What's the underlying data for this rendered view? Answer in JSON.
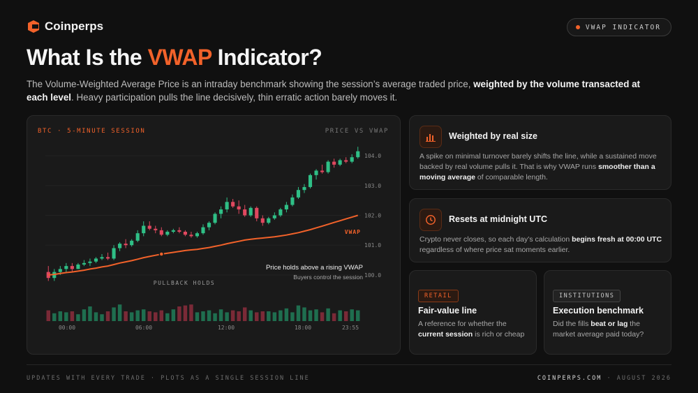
{
  "brand": {
    "name": "Coinperps"
  },
  "badge": {
    "label": "VWAP INDICATOR"
  },
  "headline": {
    "pre": "What Is the ",
    "accent": "VWAP",
    "post": " Indicator?"
  },
  "lede": {
    "p1": "The Volume-Weighted Average Price is an intraday benchmark showing the session’s average traded price, ",
    "bold": "weighted by the volume transacted at each level",
    "p2": ". Heavy participation pulls the line decisively, thin erratic action barely moves it."
  },
  "colors": {
    "accent": "#f2622a",
    "up": "#2fbf86",
    "down": "#e0485f"
  },
  "chart_data": {
    "type": "candlestick",
    "title": "BTC · 5-MINUTE SESSION",
    "subtitle": "PRICE VS VWAP",
    "ylim": [
      99.6,
      104.4
    ],
    "yticks": [
      "104.0",
      "103.0",
      "102.0",
      "101.0",
      "100.0"
    ],
    "xticks": [
      "00:00",
      "06:00",
      "12:00",
      "18:00",
      "23:55"
    ],
    "vwap_label": "VWAP",
    "annotation": {
      "title": "Price holds above a rising VWAP",
      "subtitle": "Buyers control the session"
    },
    "marker_label": "PULLBACK HOLDS",
    "candles": [
      {
        "o": 100.1,
        "h": 100.3,
        "l": 99.8,
        "c": 99.9
      },
      {
        "o": 99.9,
        "h": 100.2,
        "l": 99.8,
        "c": 100.1
      },
      {
        "o": 100.1,
        "h": 100.3,
        "l": 100.0,
        "c": 100.2
      },
      {
        "o": 100.2,
        "h": 100.4,
        "l": 100.1,
        "c": 100.3
      },
      {
        "o": 100.3,
        "h": 100.4,
        "l": 100.1,
        "c": 100.2
      },
      {
        "o": 100.2,
        "h": 100.4,
        "l": 100.2,
        "c": 100.35
      },
      {
        "o": 100.35,
        "h": 100.5,
        "l": 100.3,
        "c": 100.4
      },
      {
        "o": 100.4,
        "h": 100.55,
        "l": 100.3,
        "c": 100.45
      },
      {
        "o": 100.45,
        "h": 100.6,
        "l": 100.4,
        "c": 100.55
      },
      {
        "o": 100.55,
        "h": 100.7,
        "l": 100.5,
        "c": 100.6
      },
      {
        "o": 100.6,
        "h": 100.75,
        "l": 100.5,
        "c": 100.55
      },
      {
        "o": 100.55,
        "h": 101.0,
        "l": 100.5,
        "c": 100.9
      },
      {
        "o": 100.9,
        "h": 101.1,
        "l": 100.8,
        "c": 101.05
      },
      {
        "o": 101.05,
        "h": 101.2,
        "l": 100.9,
        "c": 101.0
      },
      {
        "o": 101.0,
        "h": 101.2,
        "l": 100.95,
        "c": 101.15
      },
      {
        "o": 101.15,
        "h": 101.5,
        "l": 101.1,
        "c": 101.4
      },
      {
        "o": 101.4,
        "h": 101.8,
        "l": 101.3,
        "c": 101.65
      },
      {
        "o": 101.65,
        "h": 101.8,
        "l": 101.5,
        "c": 101.55
      },
      {
        "o": 101.55,
        "h": 101.65,
        "l": 101.4,
        "c": 101.5
      },
      {
        "o": 101.5,
        "h": 101.6,
        "l": 101.3,
        "c": 101.35
      },
      {
        "o": 101.35,
        "h": 101.5,
        "l": 101.3,
        "c": 101.45
      },
      {
        "o": 101.45,
        "h": 101.55,
        "l": 101.4,
        "c": 101.5
      },
      {
        "o": 101.5,
        "h": 101.6,
        "l": 101.4,
        "c": 101.45
      },
      {
        "o": 101.45,
        "h": 101.5,
        "l": 101.3,
        "c": 101.35
      },
      {
        "o": 101.35,
        "h": 101.45,
        "l": 101.25,
        "c": 101.3
      },
      {
        "o": 101.3,
        "h": 101.45,
        "l": 101.25,
        "c": 101.4
      },
      {
        "o": 101.4,
        "h": 101.7,
        "l": 101.35,
        "c": 101.6
      },
      {
        "o": 101.6,
        "h": 101.8,
        "l": 101.5,
        "c": 101.75
      },
      {
        "o": 101.75,
        "h": 102.1,
        "l": 101.7,
        "c": 102.05
      },
      {
        "o": 102.05,
        "h": 102.3,
        "l": 101.9,
        "c": 102.2
      },
      {
        "o": 102.2,
        "h": 102.6,
        "l": 102.1,
        "c": 102.45
      },
      {
        "o": 102.45,
        "h": 102.55,
        "l": 102.25,
        "c": 102.3
      },
      {
        "o": 102.3,
        "h": 102.5,
        "l": 102.05,
        "c": 102.2
      },
      {
        "o": 102.2,
        "h": 102.35,
        "l": 101.95,
        "c": 102.0
      },
      {
        "o": 102.0,
        "h": 102.3,
        "l": 101.95,
        "c": 102.25
      },
      {
        "o": 102.25,
        "h": 102.3,
        "l": 101.8,
        "c": 101.9
      },
      {
        "o": 101.9,
        "h": 102.0,
        "l": 101.65,
        "c": 101.75
      },
      {
        "o": 101.75,
        "h": 101.95,
        "l": 101.7,
        "c": 101.9
      },
      {
        "o": 101.9,
        "h": 102.1,
        "l": 101.85,
        "c": 102.0
      },
      {
        "o": 102.0,
        "h": 102.25,
        "l": 101.95,
        "c": 102.2
      },
      {
        "o": 102.2,
        "h": 102.45,
        "l": 102.1,
        "c": 102.35
      },
      {
        "o": 102.35,
        "h": 102.7,
        "l": 102.3,
        "c": 102.6
      },
      {
        "o": 102.6,
        "h": 102.95,
        "l": 102.55,
        "c": 102.85
      },
      {
        "o": 102.85,
        "h": 103.05,
        "l": 102.75,
        "c": 102.95
      },
      {
        "o": 102.95,
        "h": 103.4,
        "l": 102.9,
        "c": 103.35
      },
      {
        "o": 103.35,
        "h": 103.55,
        "l": 103.2,
        "c": 103.5
      },
      {
        "o": 103.5,
        "h": 103.7,
        "l": 103.4,
        "c": 103.45
      },
      {
        "o": 103.45,
        "h": 103.85,
        "l": 103.4,
        "c": 103.8
      },
      {
        "o": 103.8,
        "h": 103.9,
        "l": 103.6,
        "c": 103.7
      },
      {
        "o": 103.7,
        "h": 103.9,
        "l": 103.65,
        "c": 103.85
      },
      {
        "o": 103.85,
        "h": 103.95,
        "l": 103.75,
        "c": 103.8
      },
      {
        "o": 103.8,
        "h": 104.05,
        "l": 103.75,
        "c": 103.95
      },
      {
        "o": 103.95,
        "h": 104.3,
        "l": 103.9,
        "c": 104.15
      }
    ],
    "vwap": [
      100.0,
      100.02,
      100.05,
      100.08,
      100.1,
      100.13,
      100.16,
      100.2,
      100.23,
      100.27,
      100.3,
      100.35,
      100.4,
      100.44,
      100.48,
      100.53,
      100.58,
      100.62,
      100.66,
      100.7,
      100.73,
      100.76,
      100.79,
      100.82,
      100.84,
      100.86,
      100.89,
      100.92,
      100.96,
      101.0,
      101.05,
      101.09,
      101.13,
      101.17,
      101.2,
      101.22,
      101.24,
      101.26,
      101.28,
      101.31,
      101.34,
      101.38,
      101.42,
      101.47,
      101.52,
      101.58,
      101.64,
      101.7,
      101.76,
      101.82,
      101.88,
      101.94,
      102.0
    ],
    "volume": [
      0.55,
      0.4,
      0.5,
      0.45,
      0.5,
      0.35,
      0.6,
      0.75,
      0.45,
      0.35,
      0.5,
      0.7,
      0.85,
      0.5,
      0.45,
      0.55,
      0.6,
      0.5,
      0.45,
      0.55,
      0.4,
      0.6,
      0.75,
      0.8,
      0.85,
      0.45,
      0.5,
      0.55,
      0.4,
      0.6,
      0.45,
      0.55,
      0.5,
      0.7,
      0.55,
      0.45,
      0.5,
      0.5,
      0.45,
      0.55,
      0.65,
      0.45,
      0.8,
      0.7,
      0.55,
      0.6,
      0.45,
      0.65,
      0.4,
      0.55,
      0.5,
      0.6,
      0.55
    ]
  },
  "cards": {
    "weighted": {
      "title": "Weighted by real size",
      "p1": "A spike on minimal turnover barely shifts the line, while a sustained move backed by real volume pulls it. That is why VWAP runs ",
      "bold": "smoother than a moving average",
      "p2": " of comparable length."
    },
    "resets": {
      "title": "Resets at midnight UTC",
      "p1": "Crypto never closes, so each day’s calculation ",
      "bold": "begins fresh at 00:00 UTC",
      "p2": " regardless of where price sat moments earlier."
    },
    "retail": {
      "tag": "RETAIL",
      "title": "Fair-value line",
      "p1": "A reference for whether the ",
      "bold": "current session",
      "p2": " is rich or cheap"
    },
    "institutions": {
      "tag": "INSTITUTIONS",
      "title": "Execution benchmark",
      "p1": "Did the fills ",
      "bold": "beat or lag",
      "p2": " the market average paid today?"
    }
  },
  "footer": {
    "left": "UPDATES WITH EVERY TRADE · PLOTS AS A SINGLE SESSION LINE",
    "site": "COINPERPS.COM",
    "sep": " · ",
    "date": "AUGUST 2026"
  }
}
